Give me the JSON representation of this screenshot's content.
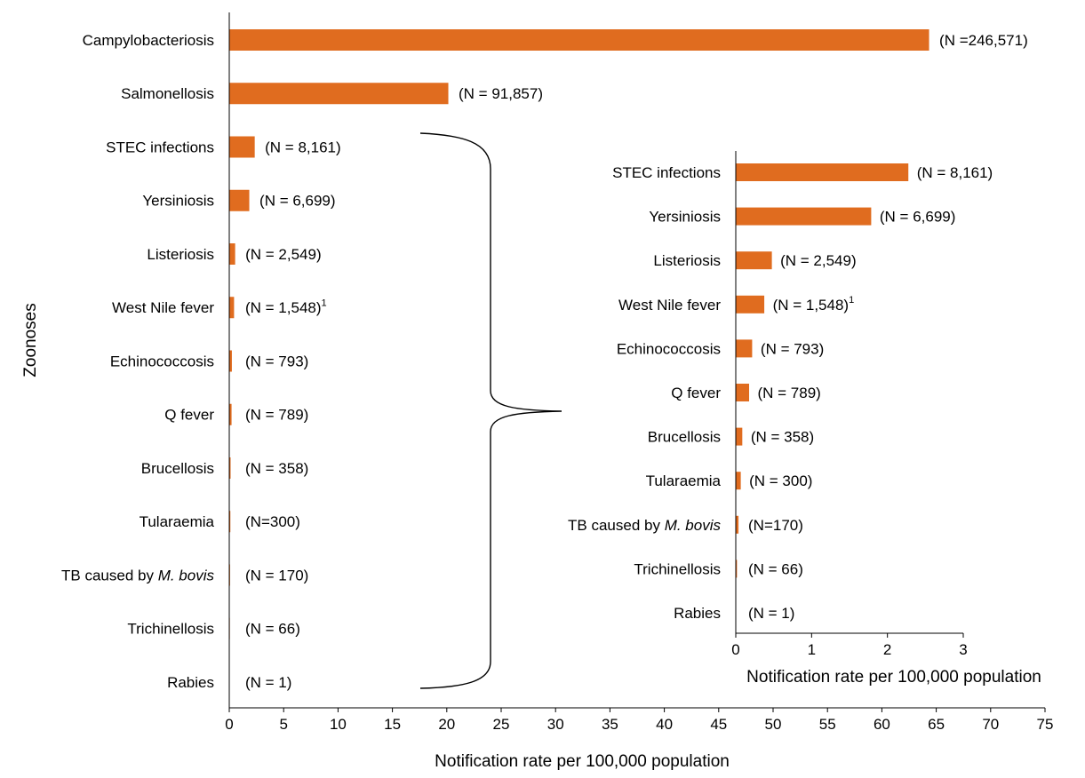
{
  "chart_data": [
    {
      "type": "bar",
      "orientation": "horizontal",
      "xlabel": "Notification rate per 100,000 population",
      "ylabel": "Zoonoses",
      "xlim": [
        0,
        75
      ],
      "xticks": [
        0,
        5,
        10,
        15,
        20,
        25,
        30,
        35,
        40,
        45,
        50,
        55,
        60,
        65,
        70,
        75
      ],
      "grid": false,
      "color": "#e06c1f",
      "categories": [
        {
          "name": "Campylobacteriosis",
          "value": 64.3,
          "label": "(N =246,571)"
        },
        {
          "name": "Salmonellosis",
          "value": 20.1,
          "label": "(N = 91,857)"
        },
        {
          "name": "STEC infections",
          "value": 2.3,
          "label": "(N = 8,161)"
        },
        {
          "name": "Yersiniosis",
          "value": 1.8,
          "label": "(N = 6,699)"
        },
        {
          "name": "Listeriosis",
          "value": 0.5,
          "label": "(N = 2,549)"
        },
        {
          "name": "West Nile fever",
          "value": 0.4,
          "label": "(N = 1,548)",
          "sup": "1"
        },
        {
          "name": "Echinococcosis",
          "value": 0.2,
          "label": "(N = 793)"
        },
        {
          "name": "Q fever",
          "value": 0.17,
          "label": "(N = 789)"
        },
        {
          "name": "Brucellosis",
          "value": 0.08,
          "label": "(N = 358)"
        },
        {
          "name": "Tularaemia",
          "value": 0.06,
          "label": "(N=300)"
        },
        {
          "name": "TB caused by ",
          "name_italic": "M. bovis",
          "value": 0.03,
          "label": "(N = 170)"
        },
        {
          "name": "Trichinellosis",
          "value": 0.01,
          "label": "(N = 66)"
        },
        {
          "name": "Rabies",
          "value": 0.0,
          "label": "(N = 1)"
        }
      ]
    },
    {
      "type": "bar",
      "orientation": "horizontal",
      "xlabel": "Notification rate per 100,000 population",
      "xlim": [
        0,
        3
      ],
      "xticks": [
        0,
        1,
        2,
        3
      ],
      "grid": false,
      "color": "#e06c1f",
      "categories": [
        {
          "name": "STEC infections",
          "value": 2.27,
          "label": "(N = 8,161)"
        },
        {
          "name": "Yersiniosis",
          "value": 1.78,
          "label": "(N = 6,699)"
        },
        {
          "name": "Listeriosis",
          "value": 0.47,
          "label": "(N = 2,549)"
        },
        {
          "name": "West Nile fever",
          "value": 0.37,
          "label": "(N = 1,548)",
          "sup": "1"
        },
        {
          "name": "Echinococcosis",
          "value": 0.21,
          "label": "(N = 793)"
        },
        {
          "name": "Q fever",
          "value": 0.17,
          "label": "(N = 789)"
        },
        {
          "name": "Brucellosis",
          "value": 0.08,
          "label": "(N = 358)"
        },
        {
          "name": "Tularaemia",
          "value": 0.06,
          "label": "(N = 300)"
        },
        {
          "name": "TB caused by ",
          "name_italic": "M. bovis",
          "value": 0.03,
          "label": "(N=170)"
        },
        {
          "name": "Trichinellosis",
          "value": 0.01,
          "label": "(N = 66)"
        },
        {
          "name": "Rabies",
          "value": 0.0,
          "label": "(N = 1)"
        }
      ]
    }
  ]
}
